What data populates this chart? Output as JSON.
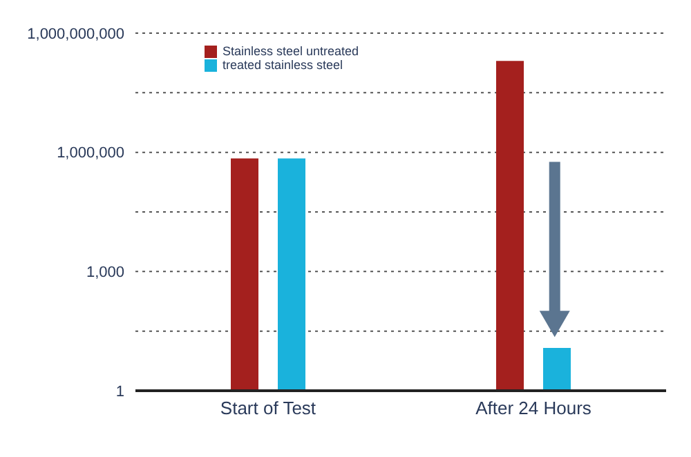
{
  "chart_data": {
    "type": "bar",
    "categories": [
      "Start of Test",
      "After 24 Hours"
    ],
    "series": [
      {
        "name": "Stainless steel untreated",
        "color": "#a4201e",
        "values": [
          700000,
          200000000
        ]
      },
      {
        "name": "treated stainless steel",
        "color": "#1ab2dc",
        "values": [
          700000,
          12
        ]
      }
    ],
    "log": true,
    "ylim": [
      1,
      1000000000
    ],
    "yticks": [
      1,
      {
        "value": 31.6,
        "label": null
      },
      {
        "value": 1000,
        "label": "1,000"
      },
      {
        "value": 31600,
        "label": null
      },
      {
        "value": 1000000,
        "label": "1,000,000"
      },
      {
        "value": 31600000,
        "label": null
      },
      {
        "value": 1000000000,
        "label": "1,000,000,000"
      }
    ],
    "grid": "y",
    "legend": "top left"
  }
}
